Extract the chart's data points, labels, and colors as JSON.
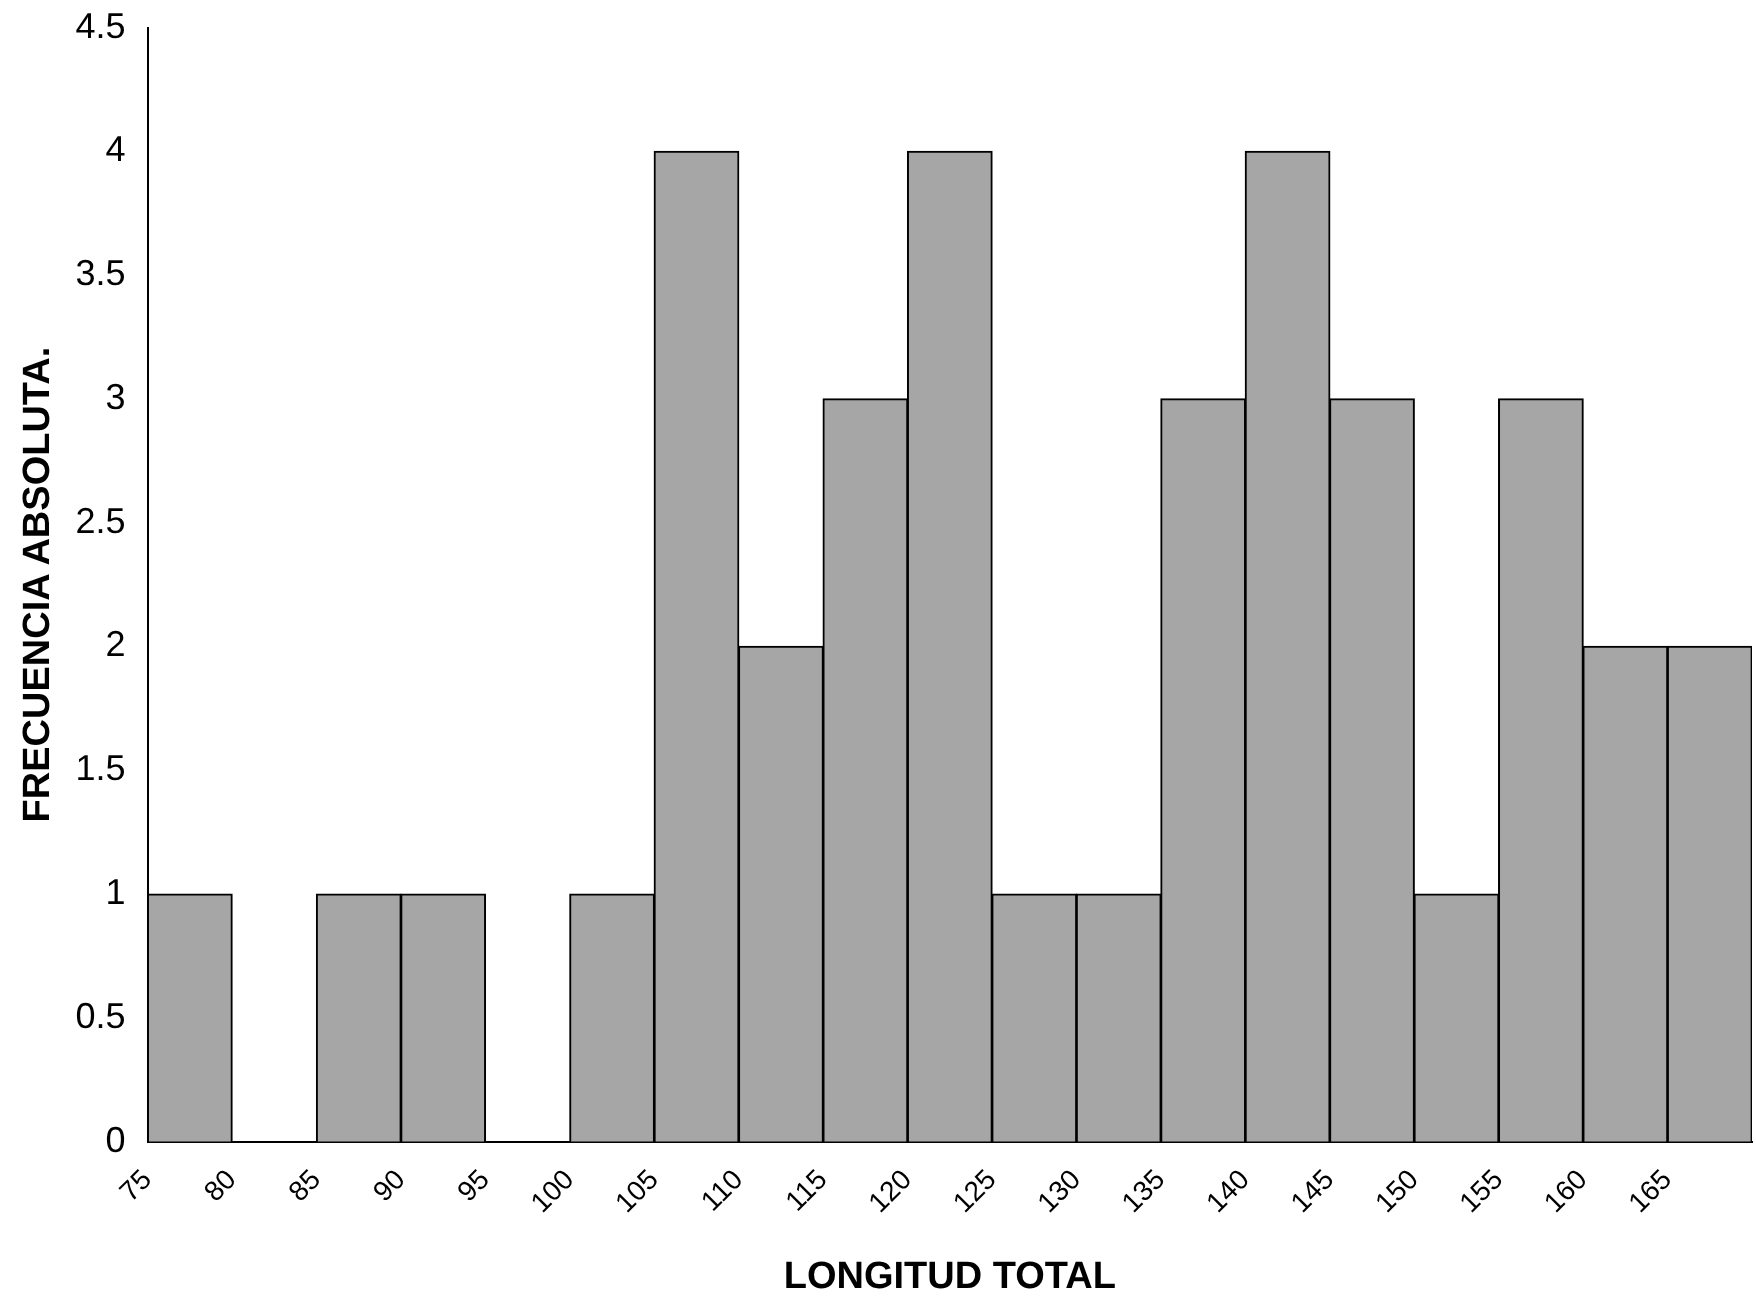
{
  "chart_data": {
    "type": "histogram",
    "xlabel": "LONGITUD TOTAL",
    "ylabel": "FRECUENCIA ABSOLUTA.",
    "bins": [
      75,
      80,
      85,
      90,
      95,
      100,
      105,
      110,
      115,
      120,
      125,
      130,
      135,
      140,
      145,
      150,
      155,
      160,
      165,
      170
    ],
    "values": [
      1,
      0,
      1,
      1,
      0,
      1,
      4,
      2,
      3,
      4,
      1,
      1,
      3,
      4,
      3,
      1,
      3,
      2,
      2
    ],
    "color": "#a6a6a6",
    "xlim": [
      75,
      170
    ],
    "xticks": [
      75,
      80,
      85,
      90,
      95,
      100,
      105,
      110,
      115,
      120,
      125,
      130,
      135,
      140,
      145,
      150,
      155,
      160,
      165
    ],
    "ylim": [
      0,
      4.5
    ],
    "yticks": [
      0,
      0.5,
      1,
      1.5,
      2,
      2.5,
      3,
      3.5,
      4,
      4.5
    ],
    "grid": false,
    "legend": false
  }
}
